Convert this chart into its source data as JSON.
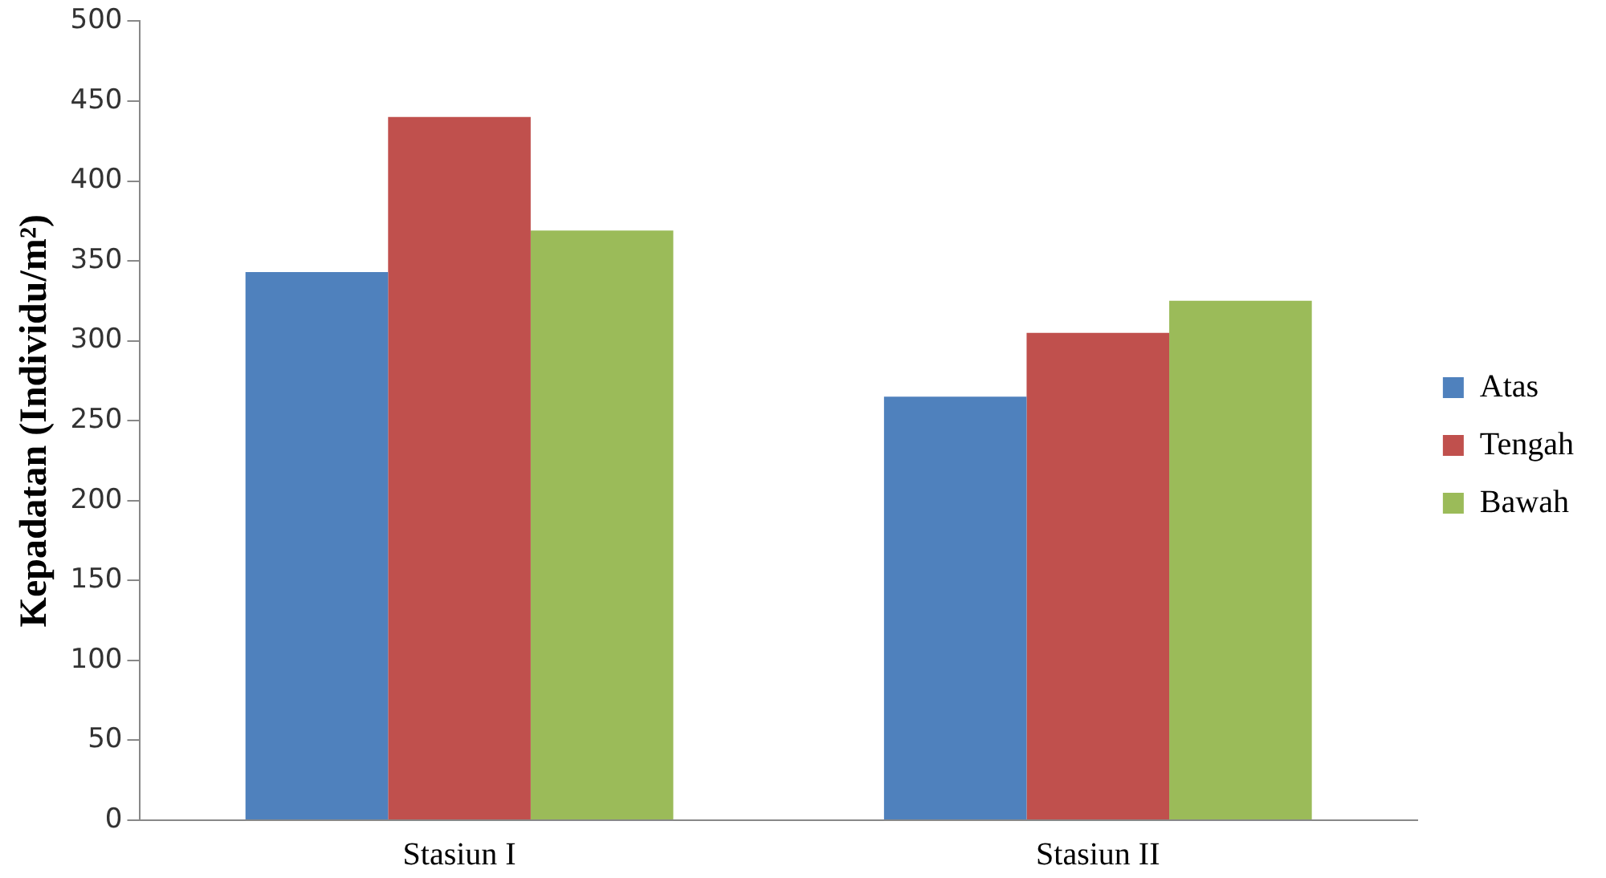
{
  "chart_data": {
    "type": "bar",
    "ylabel": "Kepadatan (Individu/m²)",
    "categories": [
      "Stasiun I",
      "Stasiun II"
    ],
    "series": [
      {
        "name": "Atas",
        "color": "#4f81bd",
        "values": [
          343,
          265
        ]
      },
      {
        "name": "Tengah",
        "color": "#c0504d",
        "values": [
          440,
          305
        ]
      },
      {
        "name": "Bawah",
        "color": "#9bbb59",
        "values": [
          369,
          325
        ]
      }
    ],
    "ylim": [
      0,
      500
    ],
    "yticks": [
      0,
      50,
      100,
      150,
      200,
      250,
      300,
      350,
      400,
      450,
      500
    ],
    "grid": false,
    "legend": "right"
  }
}
